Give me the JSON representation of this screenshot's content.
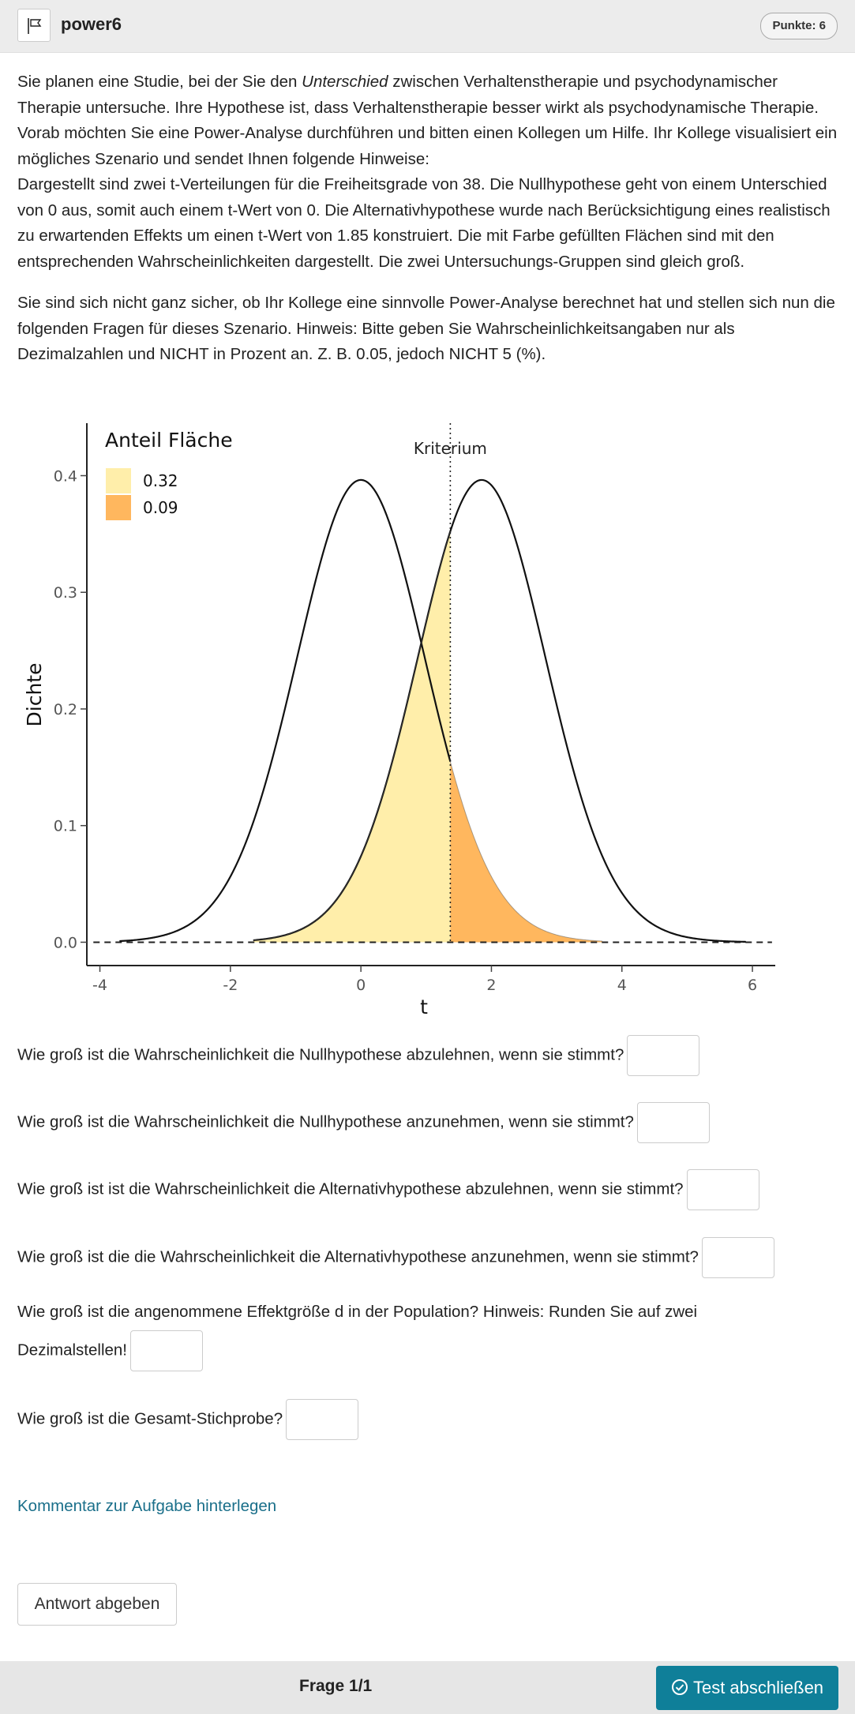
{
  "header": {
    "title": "power6",
    "points": "Punkte: 6"
  },
  "task": {
    "p1_a": "Sie planen eine Studie, bei der Sie den ",
    "p1_em": "Unterschied",
    "p1_b": " zwischen Verhaltenstherapie und psychodynamischer Therapie untersuche. Ihre Hypothese ist, dass Verhaltenstherapie besser wirkt als psychodynamische Therapie. Vorab möchten Sie eine Power-Analyse durchführen und bitten einen Kollegen um Hilfe. Ihr Kollege visualisiert ein mögliches Szenario und sendet Ihnen folgende Hinweise:",
    "p1_c": "Dargestellt sind zwei t-Verteilungen für die Freiheitsgrade von 38. Die Nullhypothese geht von einem Unterschied von 0 aus, somit auch einem t-Wert von 0. Die Alternativhypothese wurde nach Berücksichtigung eines realistisch zu erwartenden Effekts um einen t-Wert von 1.85 konstruiert. Die mit Farbe gefüllten Flächen sind mit den entsprechenden Wahrscheinlichkeiten dargestellt. Die zwei Untersuchungs-Gruppen sind gleich groß.",
    "p2": "Sie sind sich nicht ganz sicher, ob Ihr Kollege eine sinnvolle Power-Analyse berechnet hat und stellen sich nun die folgenden Fragen für dieses Szenario. Hinweis: Bitte geben Sie Wahrscheinlichkeitsangaben nur als Dezimalzahlen und NICHT in Prozent an. Z. B. 0.05, jedoch NICHT 5 (%)."
  },
  "chart_data": {
    "type": "area",
    "xlabel": "t",
    "ylabel": "Dichte",
    "xlim": [
      -4.2,
      6.35
    ],
    "ylim": [
      -0.02,
      0.445
    ],
    "x_ticks": [
      "-4",
      "-2",
      "0",
      "2",
      "4",
      "6"
    ],
    "y_ticks": [
      "0.0",
      "0.1",
      "0.2",
      "0.3",
      "0.4"
    ],
    "df": 38,
    "series": [
      {
        "center": 0,
        "x_range": [
          -3.7,
          1.37
        ]
      },
      {
        "center": 1.85,
        "x_range": [
          -1.65,
          5.9
        ]
      }
    ],
    "criterion": {
      "label": "Kriterium",
      "x": 1.37
    },
    "legend": {
      "title": "Anteil Fläche",
      "position": "top-left",
      "entries": [
        {
          "label": "0.32",
          "color": "#ffeeaa"
        },
        {
          "label": "0.09",
          "color": "#ffb75e"
        }
      ]
    },
    "fill_regions": [
      {
        "curve_center": 1.85,
        "x_range": [
          -1.65,
          1.37
        ],
        "color": "#ffeeaa"
      },
      {
        "curve_center": 0,
        "x_range": [
          1.37,
          3.7
        ],
        "color": "#ffb75e"
      }
    ]
  },
  "questions": [
    "Wie groß ist die Wahrscheinlichkeit die Nullhypothese abzulehnen, wenn sie stimmt?",
    "Wie groß ist die Wahrscheinlichkeit die Nullhypothese anzunehmen, wenn sie stimmt?",
    "Wie groß ist ist die Wahrscheinlichkeit die Alternativhypothese abzulehnen, wenn sie stimmt?",
    "Wie groß ist die die Wahrscheinlichkeit die Alternativhypothese anzunehmen, wenn sie stimmt?",
    "Wie groß ist die angenommene Effektgröße d in der Population? Hinweis: Runden Sie auf zwei",
    "Dezimalstellen!",
    "Wie groß ist die Gesamt-Stichprobe?"
  ],
  "comment_link": "Kommentar zur Aufgabe hinterlegen",
  "submit_label": "Antwort abgeben",
  "footer": {
    "progress": "Frage 1/1",
    "finish_label": "Test abschließen"
  },
  "colors": {
    "accent": "#0f7f99",
    "fill_light": "#ffeeaa",
    "fill_dark": "#ffb75e"
  }
}
